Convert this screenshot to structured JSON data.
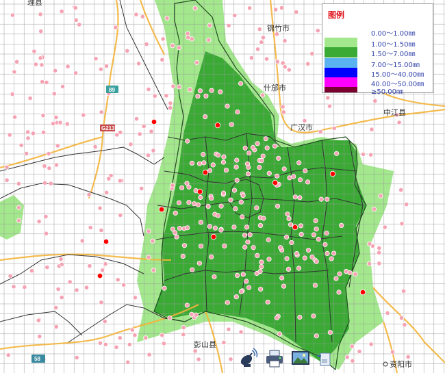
{
  "map": {
    "places": [
      {
        "name": "锦竹市"
      },
      {
        "name": "什邡市"
      },
      {
        "name": "广汉市"
      },
      {
        "name": "中江县"
      },
      {
        "name": "彭山县"
      },
      {
        "name": "资阳市"
      },
      {
        "name": "理县"
      }
    ],
    "road_shields": [
      "89",
      "G213",
      "58"
    ]
  },
  "legend": {
    "title": "图例",
    "items": [
      {
        "label": "0.00～1.00㎜",
        "color": "#ffffff"
      },
      {
        "label": "1.00～1.50㎜",
        "color": "#a3e88c"
      },
      {
        "label": "1.50～7.00㎜",
        "color": "#3aaa35"
      },
      {
        "label": "7.00～15.00㎜",
        "color": "#5ab2f0"
      },
      {
        "label": "15.00～40.00㎜",
        "color": "#0000ff"
      },
      {
        "label": "40.00～50.00㎜",
        "color": "#ff00ff"
      },
      {
        "label": "≥50.00㎜",
        "color": "#7a0030"
      }
    ]
  },
  "colors": {
    "grid": "#9a9a9a",
    "boundary": "#333333",
    "road": "#f4b43a",
    "station": "#f5a3b3",
    "station_alert": "#ff0000"
  },
  "toolbar": {
    "tools": [
      {
        "icon": "satellite-dish-icon"
      },
      {
        "icon": "printer-icon"
      },
      {
        "icon": "image-export-icon"
      },
      {
        "icon": "map-export-icon"
      }
    ]
  }
}
